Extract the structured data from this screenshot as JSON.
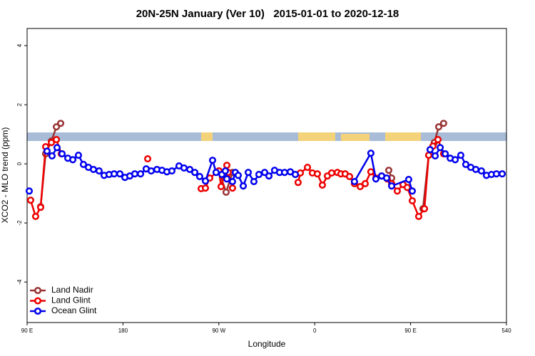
{
  "chart_data": {
    "type": "line",
    "title": "20N-25N January (Ver 10)   2015-01-01 to 2020-12-18",
    "x_label": "Longitude",
    "y_label": "XCO2 - MLO trend (ppm)",
    "xlim": [
      90,
      540
    ],
    "xticks": [
      {
        "value": 90,
        "label": "90 E"
      },
      180,
      {
        "value": 270,
        "label": "90 W"
      },
      {
        "value": 360,
        "label": "0"
      },
      {
        "value": 450,
        "label": "90 E"
      },
      540
    ],
    "ylim": [
      -5.37,
      4.58
    ],
    "yticks": [
      -4,
      -2,
      0,
      2,
      4
    ],
    "legend": "bottomleft",
    "series": [
      {
        "name": "Land Nadir",
        "color": "#993333",
        "x": [
          102.7,
          107.4,
          112.8,
          117.5,
          121.5,
          null,
          270.1,
          276.8,
          282.8,
          null,
          429.5,
          432.2,
          null,
          461.6,
          467,
          472.3,
          476.4,
          481
        ],
        "values": [
          -1.45,
          0.34,
          0.77,
          1.25,
          1.37,
          null,
          -0.24,
          -0.96,
          -0.29,
          null,
          -0.22,
          -0.48,
          null,
          -1.52,
          0.29,
          0.72,
          1.25,
          1.37
        ]
      },
      {
        "name": "Land Glint",
        "color": "#ee0000",
        "x": [
          93.3,
          98,
          102.7,
          107.4,
          112.8,
          117.5,
          122.1,
          null,
          203.2,
          null,
          253.4,
          257.4,
          261.4,
          270.1,
          272.1,
          277.5,
          278.8,
          282.8,
          null,
          344.4,
          346.5,
          353.2,
          357.8,
          362.5,
          367.2,
          371.9,
          375.9,
          381.3,
          384.6,
          388.6,
          392.7,
          397.3,
          402.7,
          407.4,
          412.7,
          417.4,
          422.8,
          428.1,
          432.2,
          437.5,
          442.9,
          446.9,
          451.6,
          457.6,
          463,
          467,
          471,
          475.7,
          481
        ],
        "values": [
          -1.23,
          -1.78,
          -1.47,
          0.58,
          0.72,
          0.82,
          0.34,
          null,
          0.17,
          null,
          -0.84,
          -0.82,
          -0.48,
          -0.24,
          -0.77,
          -0.05,
          -0.29,
          -0.82,
          null,
          -0.63,
          -0.31,
          -0.12,
          -0.31,
          -0.34,
          -0.72,
          -0.41,
          -0.31,
          -0.29,
          -0.34,
          -0.34,
          -0.43,
          -0.67,
          -0.77,
          -0.67,
          -0.27,
          -0.48,
          -0.41,
          -0.51,
          -0.67,
          -0.92,
          -0.7,
          -0.8,
          -1.25,
          -1.78,
          -1.52,
          0.29,
          0.6,
          0.82,
          0.34
        ]
      },
      {
        "name": "Ocean Glint",
        "color": "#0000ee",
        "x": [
          92,
          null,
          108.7,
          113.4,
          118.1,
          122.8,
          128.2,
          132.9,
          138.2,
          142.9,
          147.6,
          152.3,
          157.6,
          162.3,
          167,
          171.7,
          177.1,
          181.8,
          186.4,
          191.1,
          196.5,
          201.8,
          206.5,
          211.9,
          216.6,
          221.2,
          225.9,
          232.6,
          237.3,
          242.7,
          247.4,
          252,
          257.4,
          264.1,
          267.4,
          272.8,
          276.1,
          277.5,
          282.8,
          285.5,
          288.2,
          292.9,
          297.6,
          302.9,
          307.6,
          313,
          317,
          322.3,
          327,
          331.7,
          337.1,
          341.8,
          null,
          397.3,
          412.7,
          417.4,
          422.8,
          427.5,
          432.2,
          448.2,
          451.6,
          null,
          468.3,
          473.1,
          477.8,
          482.5,
          487.2,
          491.9,
          497.1,
          501.8,
          506.5,
          511.2,
          516.5,
          521.2,
          525.9,
          530.6,
          536
        ],
        "values": [
          -0.92,
          null,
          0.43,
          0.27,
          0.55,
          0.34,
          0.19,
          0.14,
          0.29,
          -0.02,
          -0.12,
          -0.19,
          -0.24,
          -0.39,
          -0.36,
          -0.34,
          -0.34,
          -0.46,
          -0.41,
          -0.34,
          -0.34,
          -0.17,
          -0.24,
          -0.19,
          -0.22,
          -0.27,
          -0.24,
          -0.07,
          -0.14,
          -0.19,
          -0.29,
          -0.43,
          -0.58,
          0.12,
          -0.29,
          -0.36,
          -0.24,
          -0.51,
          -0.6,
          -0.29,
          -0.39,
          -0.75,
          -0.29,
          -0.6,
          -0.36,
          -0.29,
          -0.41,
          -0.22,
          -0.29,
          -0.29,
          -0.27,
          -0.36,
          null,
          -0.6,
          0.36,
          -0.51,
          -0.41,
          -0.48,
          -0.75,
          -0.53,
          -0.92,
          null,
          0.48,
          0.27,
          0.55,
          0.34,
          0.19,
          0.14,
          0.29,
          -0.02,
          -0.12,
          -0.19,
          -0.24,
          -0.39,
          -0.36,
          -0.34,
          -0.34
        ]
      }
    ]
  }
}
